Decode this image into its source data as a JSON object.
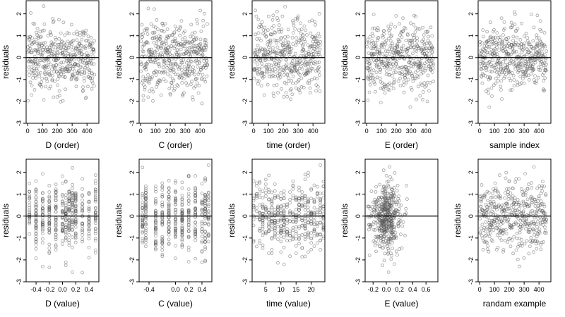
{
  "chart_data": [
    {
      "type": "scatter",
      "xlabel": "D (order)",
      "ylabel": "residuals",
      "xlim": [
        -10,
        480
      ],
      "ylim": [
        -3,
        2.6
      ],
      "xticks": [
        0,
        100,
        200,
        300,
        400
      ],
      "yticks": [
        -3,
        -2,
        -1,
        0,
        1,
        2
      ],
      "zero_line": true,
      "n_points": 450,
      "x_kind": "index"
    },
    {
      "type": "scatter",
      "xlabel": "C (order)",
      "ylabel": "residuals",
      "xlim": [
        -10,
        480
      ],
      "ylim": [
        -3,
        2.6
      ],
      "xticks": [
        0,
        100,
        200,
        300,
        400
      ],
      "yticks": [
        -3,
        -2,
        -1,
        0,
        1,
        2
      ],
      "zero_line": true,
      "n_points": 450,
      "x_kind": "index"
    },
    {
      "type": "scatter",
      "xlabel": "time (order)",
      "ylabel": "residuals",
      "xlim": [
        -10,
        480
      ],
      "ylim": [
        -3,
        2.6
      ],
      "xticks": [
        0,
        100,
        200,
        300,
        400
      ],
      "yticks": [
        -3,
        -2,
        -1,
        0,
        1,
        2
      ],
      "zero_line": true,
      "n_points": 450,
      "x_kind": "index"
    },
    {
      "type": "scatter",
      "xlabel": "E (order)",
      "ylabel": "residuals",
      "xlim": [
        -10,
        480
      ],
      "ylim": [
        -3,
        2.6
      ],
      "xticks": [
        0,
        100,
        200,
        300,
        400
      ],
      "yticks": [
        -3,
        -2,
        -1,
        0,
        1,
        2
      ],
      "zero_line": true,
      "n_points": 450,
      "x_kind": "index"
    },
    {
      "type": "scatter",
      "xlabel": "sample index",
      "ylabel": "residuals",
      "xlim": [
        -10,
        480
      ],
      "ylim": [
        -3,
        2.6
      ],
      "xticks": [
        0,
        100,
        200,
        300,
        400
      ],
      "yticks": [
        -3,
        -2,
        -1,
        0,
        1,
        2
      ],
      "zero_line": true,
      "n_points": 450,
      "x_kind": "index"
    },
    {
      "type": "scatter",
      "xlabel": "D (value)",
      "ylabel": "residuals",
      "xlim": [
        -0.55,
        0.55
      ],
      "ylim": [
        -3,
        2.6
      ],
      "xticks": [
        -0.4,
        -0.2,
        0.0,
        0.2,
        0.4
      ],
      "xtick_labels": [
        "-0.4",
        "-0.2",
        "0.0",
        "0.2",
        "0.4"
      ],
      "yticks": [
        -3,
        -2,
        -1,
        0,
        1,
        2
      ],
      "zero_line": true,
      "n_points": 450,
      "x_kind": "discrete",
      "x_levels": [
        -0.5,
        -0.4,
        -0.3,
        -0.2,
        -0.1,
        0.0,
        0.05,
        0.1,
        0.15,
        0.2,
        0.3,
        0.4,
        0.5
      ]
    },
    {
      "type": "scatter",
      "xlabel": "C (value)",
      "ylabel": "residuals",
      "xlim": [
        -0.55,
        0.55
      ],
      "ylim": [
        -3,
        2.6
      ],
      "xticks": [
        -0.4,
        0.0,
        0.2,
        0.4
      ],
      "xtick_labels": [
        "-0.4",
        "0.0",
        "0.2",
        "0.4"
      ],
      "yticks": [
        -3,
        -2,
        -1,
        0,
        1,
        2
      ],
      "zero_line": true,
      "n_points": 450,
      "x_kind": "discrete",
      "x_levels": [
        -0.5,
        -0.45,
        -0.3,
        -0.2,
        -0.1,
        0.0,
        0.1,
        0.2,
        0.3,
        0.4,
        0.45,
        0.5
      ]
    },
    {
      "type": "scatter",
      "xlabel": "time (value)",
      "ylabel": "residuals",
      "xlim": [
        0.5,
        24.5
      ],
      "ylim": [
        -3,
        2.6
      ],
      "xticks": [
        5,
        10,
        15,
        20
      ],
      "xtick_labels": [
        "5",
        "10",
        "15",
        "20"
      ],
      "yticks": [
        -3,
        -2,
        -1,
        0,
        1,
        2
      ],
      "zero_line": true,
      "n_points": 450,
      "x_kind": "discrete",
      "x_levels": [
        1,
        2,
        3,
        4,
        5,
        6,
        7,
        8,
        9,
        10,
        11,
        12,
        13,
        14,
        15,
        16,
        17,
        18,
        19,
        20,
        21,
        22,
        23,
        24
      ]
    },
    {
      "type": "scatter",
      "xlabel": "E (value)",
      "ylabel": "residuals",
      "xlim": [
        -0.32,
        0.78
      ],
      "ylim": [
        -3,
        2.6
      ],
      "xticks": [
        -0.2,
        0.0,
        0.2,
        0.4,
        0.6
      ],
      "xtick_labels": [
        "-0.2",
        "0.0",
        "0.2",
        "0.4",
        "0.6"
      ],
      "yticks": [
        -3,
        -2,
        -1,
        0,
        1,
        2
      ],
      "zero_line": true,
      "n_points": 450,
      "x_kind": "concentrated",
      "x_center": 0.0,
      "x_spread": 0.1
    },
    {
      "type": "scatter",
      "xlabel": "randam example",
      "ylabel": "residuals",
      "xlim": [
        -10,
        480
      ],
      "ylim": [
        -3,
        2.6
      ],
      "xticks": [
        0,
        100,
        200,
        300,
        400
      ],
      "yticks": [
        -3,
        -2,
        -1,
        0,
        1,
        2
      ],
      "zero_line": true,
      "n_points": 450,
      "x_kind": "index"
    }
  ]
}
